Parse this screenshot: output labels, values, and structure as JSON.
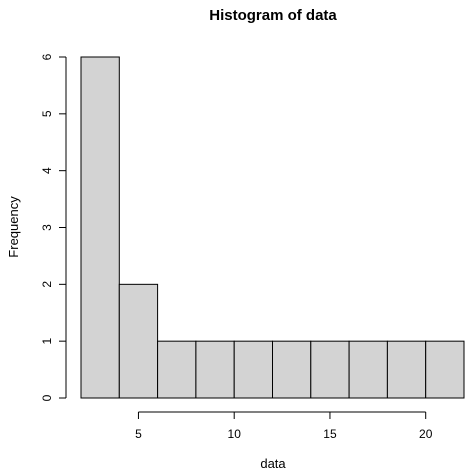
{
  "chart_data": {
    "type": "bar",
    "subtype": "histogram",
    "title": "Histogram of data",
    "xlabel": "data",
    "ylabel": "Frequency",
    "bins": [
      {
        "from": 2,
        "to": 4,
        "count": 6
      },
      {
        "from": 4,
        "to": 6,
        "count": 2
      },
      {
        "from": 6,
        "to": 8,
        "count": 1
      },
      {
        "from": 8,
        "to": 10,
        "count": 1
      },
      {
        "from": 10,
        "to": 12,
        "count": 1
      },
      {
        "from": 12,
        "to": 14,
        "count": 1
      },
      {
        "from": 14,
        "to": 16,
        "count": 1
      },
      {
        "from": 16,
        "to": 18,
        "count": 1
      },
      {
        "from": 18,
        "to": 20,
        "count": 1
      },
      {
        "from": 20,
        "to": 22,
        "count": 1
      }
    ],
    "xticks": [
      5,
      10,
      15,
      20
    ],
    "xtick_labels": [
      "5",
      "10",
      "15",
      "20"
    ],
    "yticks": [
      0,
      1,
      2,
      3,
      4,
      5,
      6
    ],
    "ytick_labels": [
      "0",
      "1",
      "2",
      "3",
      "4",
      "5",
      "6"
    ],
    "xlim": [
      2,
      22
    ],
    "ylim": [
      0,
      6
    ],
    "grid": false,
    "legend": "none",
    "bar_fill": "#d3d3d3",
    "bar_stroke": "#000000"
  }
}
